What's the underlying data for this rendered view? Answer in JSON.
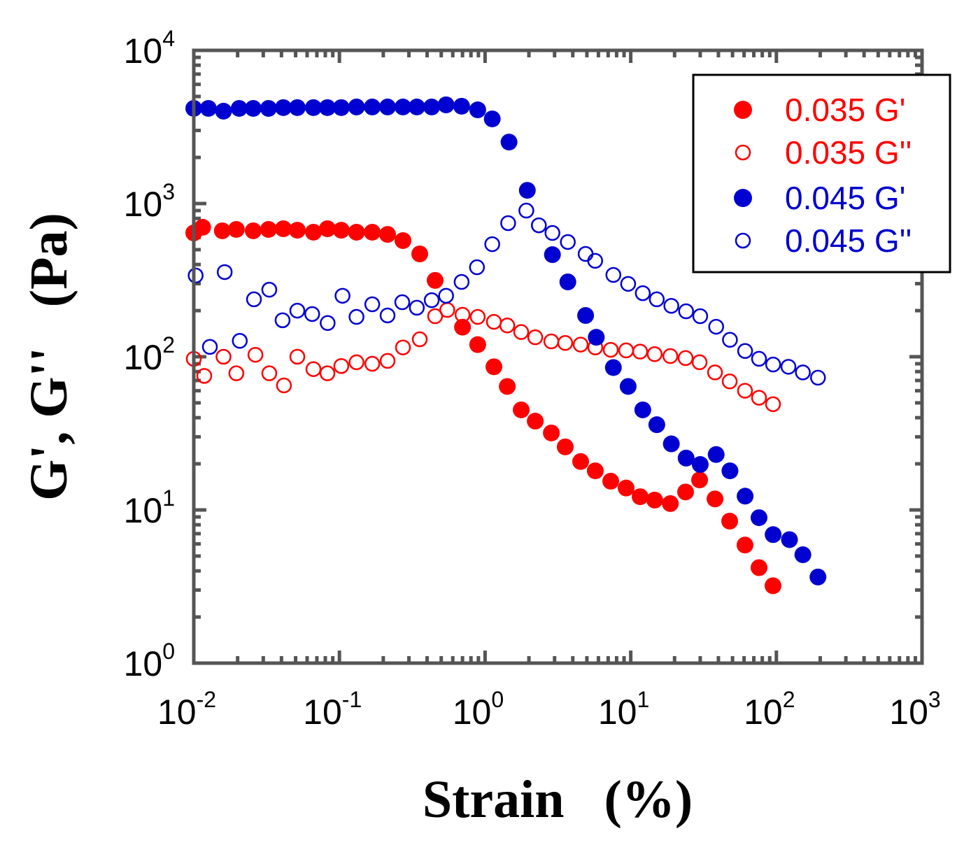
{
  "chart_data": {
    "type": "scatter",
    "title": "",
    "xlabel": "Strain   (%)",
    "ylabel": "G', G''   (Pa)",
    "xscale": "log",
    "yscale": "log",
    "xlim": [
      0.01,
      1000
    ],
    "ylim": [
      1,
      10000
    ],
    "x_ticks": [
      {
        "base": "10",
        "exp": "-2",
        "value": 0.01
      },
      {
        "base": "10",
        "exp": "-1",
        "value": 0.1
      },
      {
        "base": "10",
        "exp": "0",
        "value": 1
      },
      {
        "base": "10",
        "exp": "1",
        "value": 10
      },
      {
        "base": "10",
        "exp": "2",
        "value": 100
      },
      {
        "base": "10",
        "exp": "3",
        "value": 1000
      }
    ],
    "y_ticks": [
      {
        "base": "10",
        "exp": "0",
        "value": 1
      },
      {
        "base": "10",
        "exp": "1",
        "value": 10
      },
      {
        "base": "10",
        "exp": "2",
        "value": 100
      },
      {
        "base": "10",
        "exp": "3",
        "value": 1000
      },
      {
        "base": "10",
        "exp": "4",
        "value": 10000
      }
    ],
    "grid": false,
    "legend_position": "top-right",
    "series": [
      {
        "name": "0.035 G'",
        "color": "#ff0000",
        "filled": true,
        "x": [
          0.01,
          0.0115,
          0.0157,
          0.0196,
          0.0256,
          0.0326,
          0.0412,
          0.0514,
          0.0663,
          0.0827,
          0.103,
          0.131,
          0.168,
          0.214,
          0.273,
          0.356,
          0.454,
          0.7,
          0.89,
          1.15,
          1.42,
          1.77,
          2.21,
          2.85,
          3.55,
          4.53,
          5.71,
          7.29,
          9.3,
          11.6,
          14.6,
          18.7,
          23.8,
          29.7,
          37.9,
          47.8,
          60.9,
          76,
          94.8
        ],
        "y": [
          643,
          700,
          664,
          678,
          664,
          678,
          685,
          670,
          650,
          685,
          670,
          650,
          650,
          629,
          573,
          469,
          315,
          156,
          120,
          86,
          64,
          45,
          38,
          31.8,
          25.8,
          20.7,
          18.0,
          15.4,
          13.9,
          12.2,
          11.6,
          11.0,
          13.1,
          15.7,
          11.8,
          8.45,
          5.9,
          4.2,
          3.2
        ]
      },
      {
        "name": "0.035 G''",
        "color": "#ff0000",
        "filled": false,
        "x": [
          0.01,
          0.0118,
          0.016,
          0.0196,
          0.0265,
          0.033,
          0.0416,
          0.0514,
          0.0663,
          0.0827,
          0.103,
          0.131,
          0.168,
          0.214,
          0.273,
          0.356,
          0.454,
          0.55,
          0.7,
          0.89,
          1.15,
          1.42,
          1.77,
          2.21,
          2.85,
          3.55,
          4.53,
          5.71,
          7.29,
          9.3,
          11.6,
          14.6,
          18.7,
          23.8,
          29.7,
          37.9,
          47.8,
          60.9,
          76,
          94.8
        ],
        "y": [
          96.9,
          75,
          100,
          78,
          103,
          78,
          65,
          100,
          83,
          78,
          87,
          92,
          90,
          94,
          115,
          130,
          184,
          202,
          188,
          182,
          169,
          160,
          145,
          134,
          126,
          123,
          120,
          115,
          111,
          110,
          108,
          104,
          101,
          98,
          92,
          79,
          69,
          60,
          54,
          49
        ]
      },
      {
        "name": "0.045 G'",
        "color": "#0000d0",
        "filled": true,
        "x": [
          0.01,
          0.0126,
          0.016,
          0.0205,
          0.0256,
          0.0326,
          0.0412,
          0.0514,
          0.0663,
          0.0827,
          0.103,
          0.131,
          0.168,
          0.214,
          0.273,
          0.34,
          0.43,
          0.54,
          0.69,
          0.89,
          1.12,
          1.46,
          1.95,
          2.9,
          3.7,
          4.9,
          5.8,
          7.6,
          9.6,
          12.1,
          15.1,
          19,
          24,
          30,
          38.6,
          48,
          61,
          76,
          95,
          123,
          152,
          193
        ],
        "y": [
          4180,
          4180,
          4010,
          4180,
          4180,
          4180,
          4230,
          4230,
          4230,
          4230,
          4230,
          4270,
          4270,
          4270,
          4270,
          4270,
          4270,
          4410,
          4320,
          4090,
          3570,
          2520,
          1220,
          464,
          308,
          186,
          134,
          85,
          64,
          45,
          36,
          27,
          21.8,
          19.8,
          23,
          18,
          12.3,
          8.9,
          6.9,
          6.4,
          5.1,
          3.65
        ]
      },
      {
        "name": "0.045 G''",
        "color": "#0000d0",
        "filled": false,
        "x": [
          0.0103,
          0.0129,
          0.0163,
          0.0207,
          0.0259,
          0.033,
          0.0407,
          0.0514,
          0.065,
          0.083,
          0.105,
          0.131,
          0.168,
          0.214,
          0.27,
          0.34,
          0.43,
          0.54,
          0.69,
          0.88,
          1.12,
          1.44,
          1.92,
          2.34,
          2.9,
          3.7,
          4.9,
          5.7,
          7.6,
          9.6,
          12.1,
          15.1,
          19,
          24,
          30,
          38.6,
          48,
          61,
          76,
          95,
          121,
          152,
          193
        ],
        "y": [
          339,
          116,
          357,
          127,
          237,
          274,
          173,
          200,
          190,
          166,
          250,
          182,
          220,
          186,
          227,
          209,
          234,
          250,
          308,
          384,
          543,
          745,
          900,
          721,
          643,
          561,
          469,
          423,
          342,
          299,
          260,
          237,
          215,
          198,
          184,
          157,
          129,
          109,
          97,
          89,
          86,
          79,
          73
        ]
      }
    ]
  }
}
